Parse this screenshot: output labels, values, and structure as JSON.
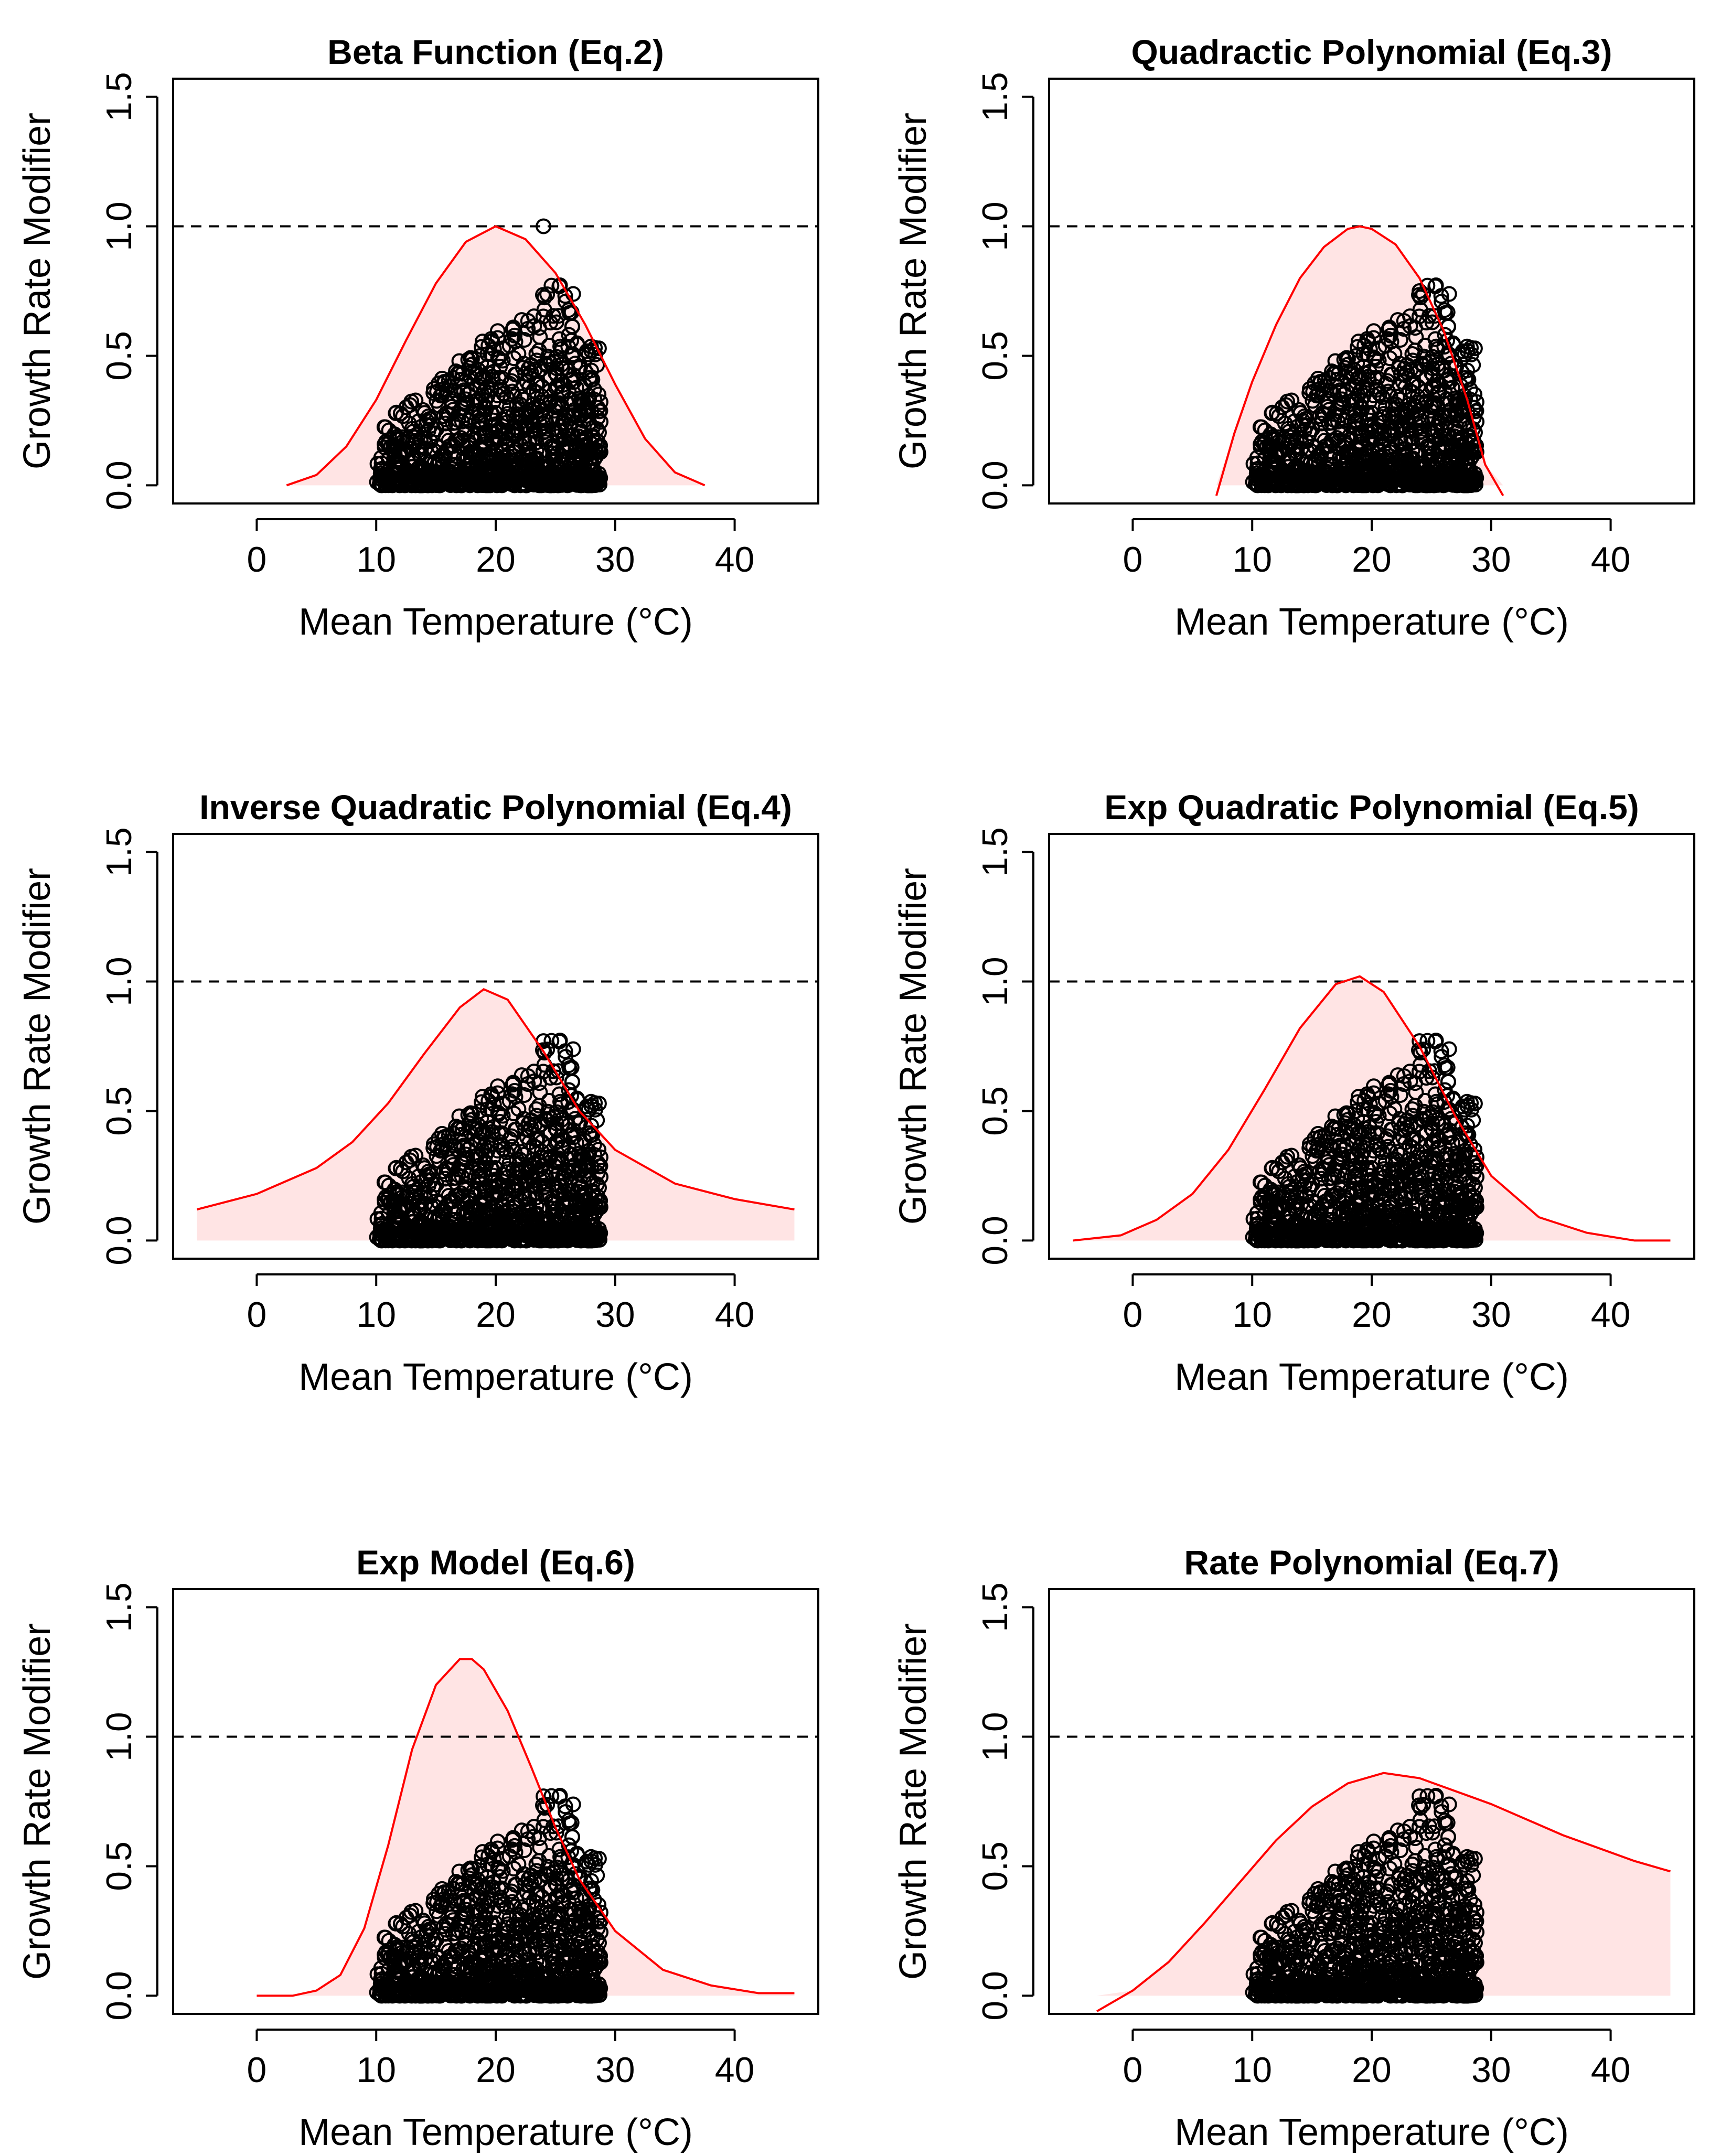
{
  "figure": {
    "colors": {
      "curve": "#ff0000",
      "fill": "#ffe4e4",
      "points": "#000000",
      "reference": "#000000",
      "frame": "#000000",
      "background": "#ffffff"
    }
  },
  "chart_data": [
    {
      "type": "line",
      "title": "Beta Function (Eq.2)",
      "xlabel": "Mean Temperature (°C)",
      "ylabel": "Growth Rate Modifier",
      "xlim": [
        -7,
        47
      ],
      "ylim": [
        -0.07,
        1.57
      ],
      "xticks": [
        "0",
        "10",
        "20",
        "30",
        "40"
      ],
      "yticks": [
        "0.0",
        "0.5",
        "1.0",
        "1.5"
      ],
      "reference_line": 1.0,
      "curve": {
        "x": [
          2.5,
          5,
          7.5,
          10,
          12.5,
          15,
          17.5,
          20,
          22.5,
          25,
          27.5,
          30,
          32.5,
          35,
          37.5
        ],
        "y": [
          0.0,
          0.04,
          0.15,
          0.33,
          0.56,
          0.78,
          0.94,
          1.0,
          0.95,
          0.82,
          0.62,
          0.39,
          0.18,
          0.05,
          0.0
        ]
      },
      "observations": {
        "x_range": [
          10,
          29
        ],
        "y_range": [
          0.0,
          1.0
        ],
        "max_point": [
          24,
          1.0
        ]
      }
    },
    {
      "type": "line",
      "title": "Quadractic Polynomial (Eq.3)",
      "xlabel": "Mean Temperature (°C)",
      "ylabel": "Growth Rate Modifier",
      "xlim": [
        -7,
        47
      ],
      "ylim": [
        -0.07,
        1.57
      ],
      "xticks": [
        "0",
        "10",
        "20",
        "30",
        "40"
      ],
      "yticks": [
        "0.0",
        "0.5",
        "1.0",
        "1.5"
      ],
      "reference_line": 1.0,
      "curve": {
        "x": [
          7.0,
          8.5,
          10,
          12,
          14,
          16,
          18,
          19,
          20,
          22,
          24,
          26,
          28,
          29.5,
          31.0
        ],
        "y": [
          -0.04,
          0.2,
          0.4,
          0.62,
          0.8,
          0.92,
          0.99,
          1.0,
          0.99,
          0.93,
          0.8,
          0.6,
          0.33,
          0.08,
          -0.04
        ]
      },
      "observations": {
        "x_range": [
          10,
          29
        ],
        "y_range": [
          0.0,
          0.75
        ],
        "max_point": [
          24,
          0.75
        ]
      }
    },
    {
      "type": "line",
      "title": "Inverse Quadratic Polynomial (Eq.4)",
      "xlabel": "Mean Temperature (°C)",
      "ylabel": "Growth Rate Modifier",
      "xlim": [
        -7,
        47
      ],
      "ylim": [
        -0.07,
        1.57
      ],
      "xticks": [
        "0",
        "10",
        "20",
        "30",
        "40"
      ],
      "yticks": [
        "0.0",
        "0.5",
        "1.0",
        "1.5"
      ],
      "reference_line": 1.0,
      "curve": {
        "x": [
          -5,
          0,
          5,
          8,
          11,
          14,
          17,
          19,
          21,
          24,
          27,
          30,
          35,
          40,
          45
        ],
        "y": [
          0.12,
          0.18,
          0.28,
          0.38,
          0.53,
          0.72,
          0.9,
          0.97,
          0.93,
          0.73,
          0.5,
          0.35,
          0.22,
          0.16,
          0.12
        ]
      },
      "observations": {
        "x_range": [
          10,
          29
        ],
        "y_range": [
          0.0,
          0.77
        ],
        "max_point": [
          24,
          0.77
        ]
      }
    },
    {
      "type": "line",
      "title": "Exp Quadratic Polynomial (Eq.5)",
      "xlabel": "Mean Temperature (°C)",
      "ylabel": "Growth Rate Modifier",
      "xlim": [
        -7,
        47
      ],
      "ylim": [
        -0.07,
        1.57
      ],
      "xticks": [
        "0",
        "10",
        "20",
        "30",
        "40"
      ],
      "yticks": [
        "0.0",
        "0.5",
        "1.0",
        "1.5"
      ],
      "reference_line": 1.0,
      "curve": {
        "x": [
          -5,
          -1,
          2,
          5,
          8,
          11,
          14,
          17,
          19,
          21,
          24,
          27,
          30,
          34,
          38,
          42,
          45
        ],
        "y": [
          0.0,
          0.02,
          0.08,
          0.18,
          0.35,
          0.58,
          0.82,
          0.99,
          1.02,
          0.96,
          0.75,
          0.48,
          0.25,
          0.09,
          0.03,
          0.0,
          0.0
        ]
      },
      "observations": {
        "x_range": [
          10,
          29
        ],
        "y_range": [
          0.0,
          0.77
        ],
        "max_point": [
          24,
          0.77
        ]
      }
    },
    {
      "type": "line",
      "title": "Exp Model (Eq.6)",
      "xlabel": "Mean Temperature (°C)",
      "ylabel": "Growth Rate Modifier",
      "xlim": [
        -7,
        47
      ],
      "ylim": [
        -0.07,
        1.57
      ],
      "xticks": [
        "0",
        "10",
        "20",
        "30",
        "40"
      ],
      "yticks": [
        "0.0",
        "0.5",
        "1.0",
        "1.5"
      ],
      "reference_line": 1.0,
      "curve": {
        "x": [
          0,
          3,
          5,
          7,
          9,
          11,
          13,
          15,
          17,
          18,
          19,
          21,
          23,
          25,
          27,
          30,
          34,
          38,
          42,
          45
        ],
        "y": [
          0.0,
          0.0,
          0.02,
          0.08,
          0.26,
          0.58,
          0.95,
          1.2,
          1.3,
          1.3,
          1.26,
          1.1,
          0.88,
          0.65,
          0.45,
          0.25,
          0.1,
          0.04,
          0.01,
          0.01
        ]
      },
      "observations": {
        "x_range": [
          10,
          29
        ],
        "y_range": [
          0.0,
          0.77
        ],
        "max_point": [
          24,
          0.77
        ]
      }
    },
    {
      "type": "line",
      "title": "Rate Polynomial (Eq.7)",
      "xlabel": "Mean Temperature (°C)",
      "ylabel": "Growth Rate Modifier",
      "xlim": [
        -7,
        47
      ],
      "ylim": [
        -0.07,
        1.57
      ],
      "xticks": [
        "0",
        "10",
        "20",
        "30",
        "40"
      ],
      "yticks": [
        "0.0",
        "0.5",
        "1.0",
        "1.5"
      ],
      "reference_line": 1.0,
      "curve": {
        "x": [
          -3,
          0,
          3,
          6,
          9,
          12,
          15,
          18,
          21,
          24,
          27,
          30,
          33,
          36,
          39,
          42,
          45
        ],
        "y": [
          -0.06,
          0.02,
          0.13,
          0.28,
          0.44,
          0.6,
          0.73,
          0.82,
          0.86,
          0.84,
          0.79,
          0.74,
          0.68,
          0.62,
          0.57,
          0.52,
          0.48
        ]
      },
      "observations": {
        "x_range": [
          10,
          29
        ],
        "y_range": [
          0.0,
          0.77
        ],
        "max_point": [
          24,
          0.77
        ]
      }
    }
  ]
}
